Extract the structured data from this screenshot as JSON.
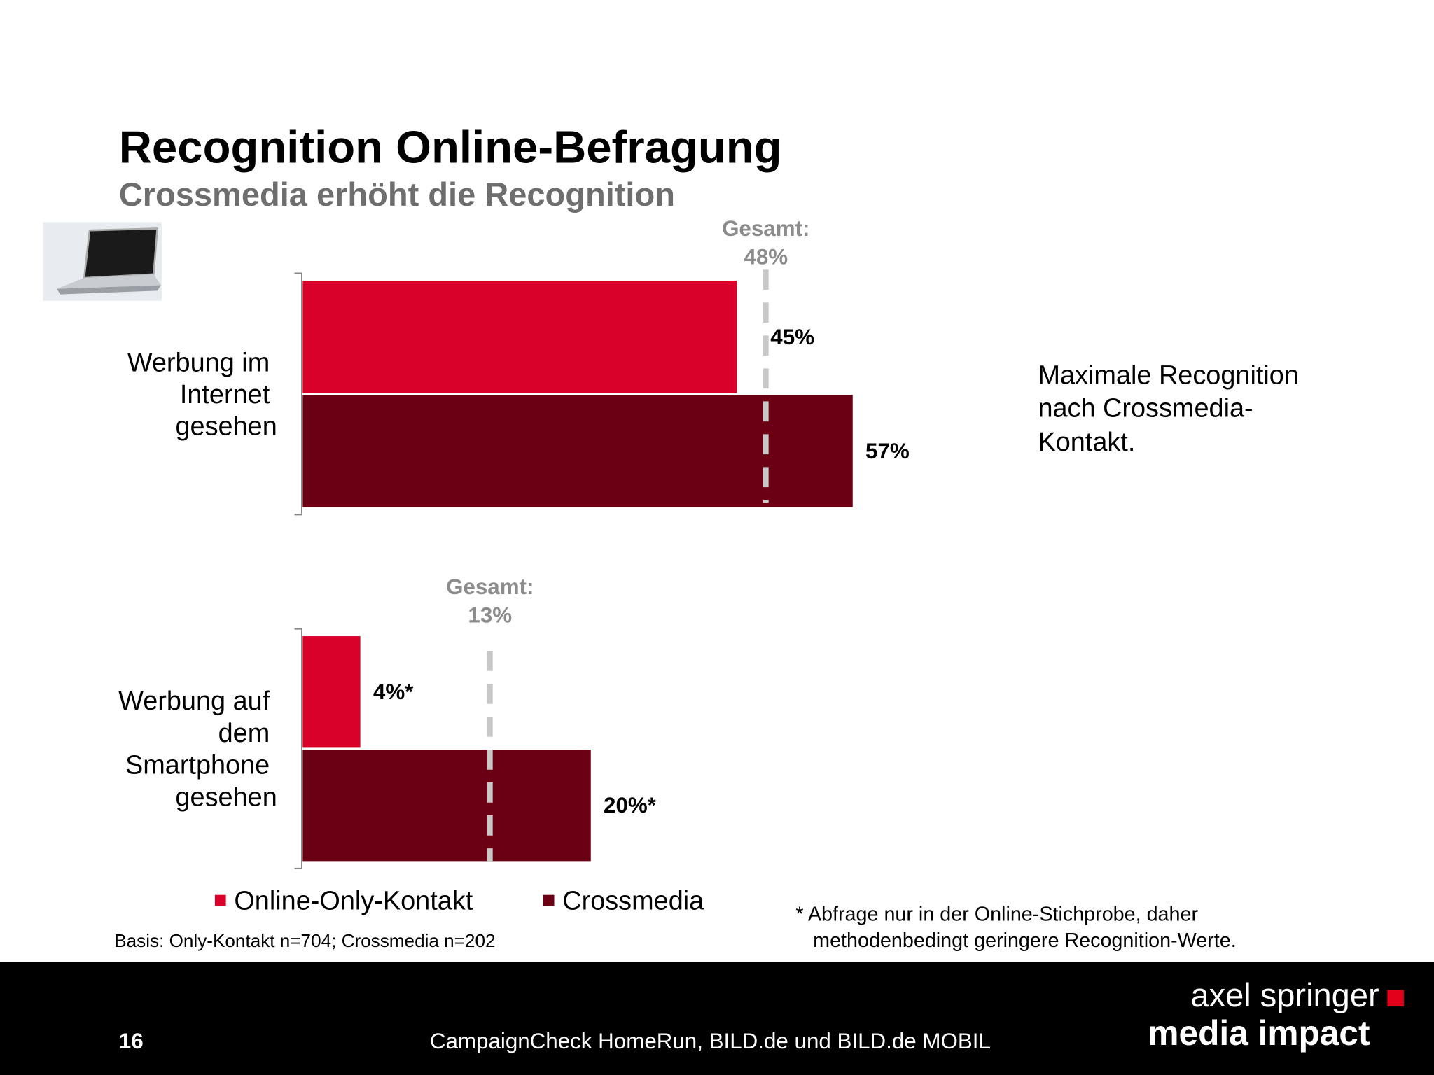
{
  "title": "Recognition Online-Befragung",
  "subtitle": "Crossmedia erhöht die Recognition",
  "chart_data": [
    {
      "type": "bar",
      "orientation": "horizontal",
      "categories": [
        "Werbung im Internet gesehen"
      ],
      "series": [
        {
          "name": "Online-Only-Kontakt",
          "color": "#d9002a",
          "values": [
            45
          ],
          "value_labels": [
            "45%"
          ]
        },
        {
          "name": "Crossmedia",
          "color": "#6b0015",
          "values": [
            57
          ],
          "value_labels": [
            "57%"
          ]
        }
      ],
      "reference": {
        "label": "Gesamt:",
        "value": 48,
        "value_label": "48%",
        "color": "#c8c8c8"
      },
      "xlim": [
        0,
        60
      ]
    },
    {
      "type": "bar",
      "orientation": "horizontal",
      "categories": [
        "Werbung auf dem Smartphone gesehen"
      ],
      "series": [
        {
          "color": "#d9002a",
          "values": [
            4
          ],
          "value_labels": [
            "4%*"
          ]
        },
        {
          "color": "#6b0015",
          "values": [
            20
          ],
          "value_labels": [
            "20%*"
          ]
        }
      ],
      "reference": {
        "label": "Gesamt:",
        "value": 13,
        "value_label": "13%",
        "color": "#c8c8c8"
      },
      "xlim": [
        0,
        40
      ]
    }
  ],
  "side_note": [
    "Maximale Recognition",
    "nach Crossmedia-",
    "Kontakt."
  ],
  "basis": "Basis: Only-Kontakt n=704; Crossmedia n=202",
  "footnote": [
    "* Abfrage nur in der Online-Stichprobe, daher",
    "methodenbedingt geringere Recognition-Werte."
  ],
  "footer": {
    "page": "16",
    "source": "CampaignCheck HomeRun, BILD.de und BILD.de MOBIL",
    "logo_top": "axel springer",
    "logo_bottom": "media impact"
  }
}
